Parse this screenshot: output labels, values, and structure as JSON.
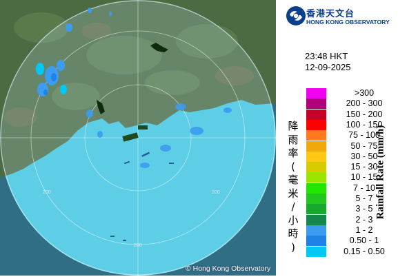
{
  "header": {
    "org_name_zh": "香港天文台",
    "org_name_en": "HONG KONG OBSERVATORY"
  },
  "timestamp": {
    "time": "23:48 HKT",
    "date": "12-09-2025"
  },
  "legend": {
    "title_en": "Rainfall Rate (mm/h)",
    "title_zh": "降雨率(毫米/小時)",
    "items": [
      {
        "label": ">300",
        "color": "#f200f2"
      },
      {
        "label": "200 - 300",
        "color": "#b2007a"
      },
      {
        "label": "150 - 200",
        "color": "#c70028"
      },
      {
        "label": "100 - 150",
        "color": "#ff0000"
      },
      {
        "label": "75 - 100",
        "color": "#ff7a1f"
      },
      {
        "label": "50 - 75",
        "color": "#f0a80a"
      },
      {
        "label": "30 - 50",
        "color": "#ffc814"
      },
      {
        "label": "15 - 30",
        "color": "#d6cc00"
      },
      {
        "label": "10 - 15",
        "color": "#9ae600"
      },
      {
        "label": "7 - 10",
        "color": "#22e600"
      },
      {
        "label": "5 - 7",
        "color": "#22c71e"
      },
      {
        "label": "3 - 5",
        "color": "#17a82e"
      },
      {
        "label": "2 - 3",
        "color": "#13884a"
      },
      {
        "label": "1 - 2",
        "color": "#3c9cf0"
      },
      {
        "label": "0.50 - 1",
        "color": "#1e82e6"
      },
      {
        "label": "0.15 - 0.50",
        "color": "#00c8f5"
      }
    ]
  },
  "map": {
    "range_ring_labels": [
      "200",
      "200",
      "200"
    ],
    "copyright": "© Hong Kong Observatory",
    "colors": {
      "sea": "#2f6e85",
      "land": "#4d6b42",
      "radar_coverage": "#5ed4ec"
    }
  }
}
